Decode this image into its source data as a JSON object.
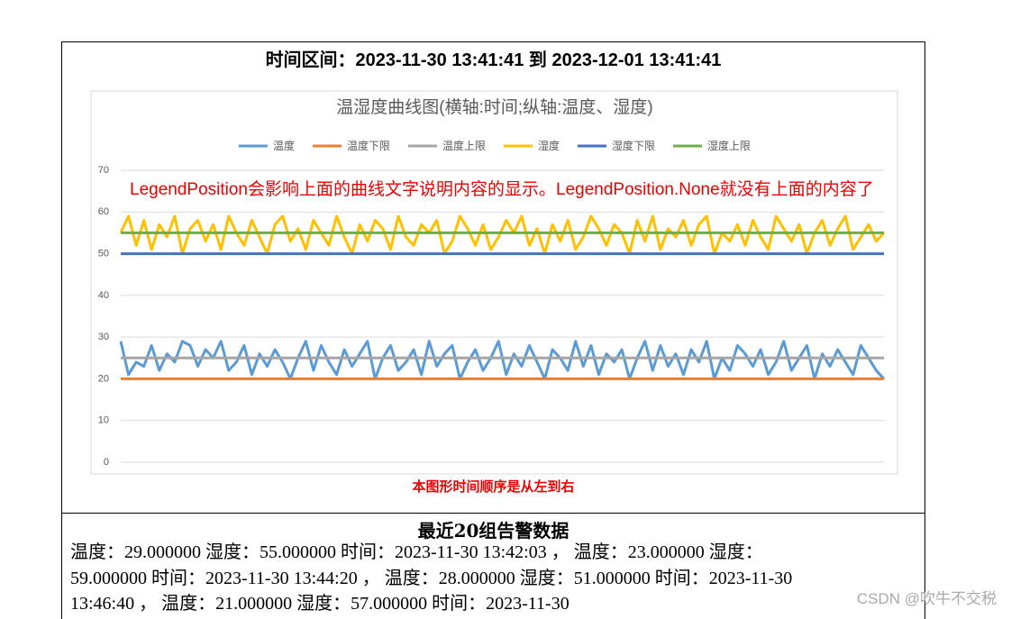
{
  "header": {
    "title": "时间区间：2023-11-30 13:41:41 到 2023-12-01 13:41:41"
  },
  "chart_data": {
    "type": "line",
    "title": "温湿度曲线图(横轴:时间;纵轴:温度、湿度)",
    "annotation": "LegendPosition会影响上面的曲线文字说明内容的显示。LegendPosition.None就没有上面的内容了",
    "ylim": [
      0,
      70
    ],
    "yticks": [
      0,
      10,
      20,
      30,
      40,
      50,
      60,
      70
    ],
    "grid": true,
    "legend": "top",
    "series": [
      {
        "name": "温度",
        "color": "#5b9bd5",
        "values": [
          29,
          21,
          24,
          23,
          28,
          22,
          26,
          24,
          29,
          28,
          23,
          27,
          25,
          29,
          22,
          24,
          28,
          21,
          26,
          23,
          27,
          24,
          20,
          25,
          29,
          22,
          28,
          24,
          21,
          27,
          23,
          26,
          29,
          20,
          25,
          28,
          22,
          24,
          27,
          21,
          29,
          23,
          26,
          28,
          20,
          24,
          27,
          22,
          25,
          29,
          21,
          26,
          23,
          28,
          24,
          20,
          27,
          25,
          22,
          29,
          23,
          28,
          21,
          26,
          24,
          27,
          20,
          25,
          29,
          22,
          28,
          23,
          26,
          21,
          27,
          24,
          29,
          20,
          25,
          22,
          28,
          26,
          23,
          27,
          21,
          24,
          29,
          22,
          25,
          28,
          20,
          26,
          23,
          27,
          24,
          21,
          28,
          25,
          22,
          20
        ]
      },
      {
        "name": "温度下限",
        "color": "#ed7d31",
        "values": [
          20,
          20,
          20,
          20,
          20,
          20,
          20,
          20,
          20,
          20,
          20,
          20,
          20,
          20,
          20,
          20,
          20,
          20,
          20,
          20,
          20,
          20,
          20,
          20,
          20,
          20,
          20,
          20,
          20,
          20,
          20,
          20,
          20,
          20,
          20,
          20,
          20,
          20,
          20,
          20,
          20,
          20,
          20,
          20,
          20,
          20,
          20,
          20,
          20,
          20,
          20,
          20,
          20,
          20,
          20,
          20,
          20,
          20,
          20,
          20,
          20,
          20,
          20,
          20,
          20,
          20,
          20,
          20,
          20,
          20,
          20,
          20,
          20,
          20,
          20,
          20,
          20,
          20,
          20,
          20,
          20,
          20,
          20,
          20,
          20,
          20,
          20,
          20,
          20,
          20,
          20,
          20,
          20,
          20,
          20,
          20,
          20,
          20,
          20,
          20
        ]
      },
      {
        "name": "温度上限",
        "color": "#a5a5a5",
        "values": [
          25,
          25,
          25,
          25,
          25,
          25,
          25,
          25,
          25,
          25,
          25,
          25,
          25,
          25,
          25,
          25,
          25,
          25,
          25,
          25,
          25,
          25,
          25,
          25,
          25,
          25,
          25,
          25,
          25,
          25,
          25,
          25,
          25,
          25,
          25,
          25,
          25,
          25,
          25,
          25,
          25,
          25,
          25,
          25,
          25,
          25,
          25,
          25,
          25,
          25,
          25,
          25,
          25,
          25,
          25,
          25,
          25,
          25,
          25,
          25,
          25,
          25,
          25,
          25,
          25,
          25,
          25,
          25,
          25,
          25,
          25,
          25,
          25,
          25,
          25,
          25,
          25,
          25,
          25,
          25,
          25,
          25,
          25,
          25,
          25,
          25,
          25,
          25,
          25,
          25,
          25,
          25,
          25,
          25,
          25,
          25,
          25,
          25,
          25,
          25
        ]
      },
      {
        "name": "湿度",
        "color": "#ffc000",
        "values": [
          55,
          59,
          52,
          58,
          51,
          57,
          54,
          59,
          50,
          56,
          58,
          53,
          57,
          51,
          59,
          55,
          52,
          58,
          54,
          50,
          57,
          59,
          53,
          56,
          51,
          58,
          55,
          52,
          59,
          54,
          50,
          57,
          53,
          58,
          56,
          51,
          59,
          54,
          52,
          57,
          55,
          58,
          50,
          53,
          59,
          56,
          52,
          57,
          51,
          54,
          58,
          55,
          59,
          52,
          56,
          50,
          57,
          53,
          58,
          51,
          54,
          59,
          56,
          52,
          57,
          55,
          50,
          58,
          53,
          59,
          51,
          56,
          54,
          58,
          52,
          57,
          59,
          50,
          55,
          53,
          57,
          52,
          58,
          54,
          51,
          59,
          56,
          53,
          57,
          50,
          55,
          58,
          52,
          56,
          59,
          51,
          54,
          57,
          53,
          55
        ]
      },
      {
        "name": "湿度下限",
        "color": "#4472c4",
        "values": [
          50,
          50,
          50,
          50,
          50,
          50,
          50,
          50,
          50,
          50,
          50,
          50,
          50,
          50,
          50,
          50,
          50,
          50,
          50,
          50,
          50,
          50,
          50,
          50,
          50,
          50,
          50,
          50,
          50,
          50,
          50,
          50,
          50,
          50,
          50,
          50,
          50,
          50,
          50,
          50,
          50,
          50,
          50,
          50,
          50,
          50,
          50,
          50,
          50,
          50,
          50,
          50,
          50,
          50,
          50,
          50,
          50,
          50,
          50,
          50,
          50,
          50,
          50,
          50,
          50,
          50,
          50,
          50,
          50,
          50,
          50,
          50,
          50,
          50,
          50,
          50,
          50,
          50,
          50,
          50,
          50,
          50,
          50,
          50,
          50,
          50,
          50,
          50,
          50,
          50,
          50,
          50,
          50,
          50,
          50,
          50,
          50,
          50,
          50,
          50
        ]
      },
      {
        "name": "湿度上限",
        "color": "#70ad47",
        "values": [
          55,
          55,
          55,
          55,
          55,
          55,
          55,
          55,
          55,
          55,
          55,
          55,
          55,
          55,
          55,
          55,
          55,
          55,
          55,
          55,
          55,
          55,
          55,
          55,
          55,
          55,
          55,
          55,
          55,
          55,
          55,
          55,
          55,
          55,
          55,
          55,
          55,
          55,
          55,
          55,
          55,
          55,
          55,
          55,
          55,
          55,
          55,
          55,
          55,
          55,
          55,
          55,
          55,
          55,
          55,
          55,
          55,
          55,
          55,
          55,
          55,
          55,
          55,
          55,
          55,
          55,
          55,
          55,
          55,
          55,
          55,
          55,
          55,
          55,
          55,
          55,
          55,
          55,
          55,
          55,
          55,
          55,
          55,
          55,
          55,
          55,
          55,
          55,
          55,
          55,
          55,
          55,
          55,
          55,
          55,
          55,
          55,
          55,
          55,
          55
        ]
      }
    ]
  },
  "caption": "本图形时间顺序是从左到右",
  "alarms": {
    "title": "最近20组告警数据",
    "text": "温度：29.000000 湿度：55.000000 时间：2023-11-30 13:42:03 ， 温度：23.000000 湿度：59.000000 时间：2023-11-30 13:44:20 ， 温度：28.000000 湿度：51.000000 时间：2023-11-30 13:46:40 ， 温度：21.000000 湿度：57.000000 时间：2023-11-30"
  },
  "watermark": "CSDN @吹牛不交税"
}
